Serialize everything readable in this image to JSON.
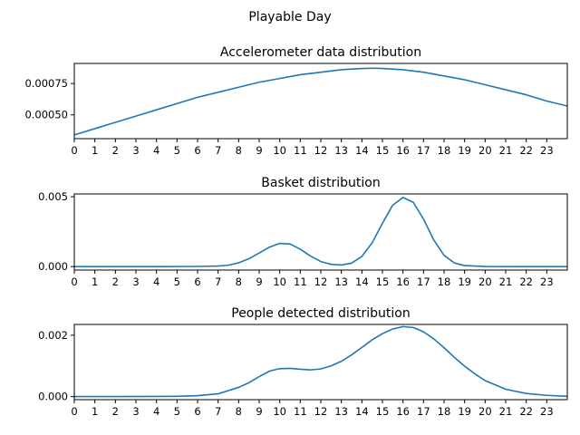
{
  "figure": {
    "suptitle": "Playable Day"
  },
  "chart_data": [
    {
      "type": "line",
      "title": "Accelerometer data distribution",
      "xlabel": "",
      "ylabel": "",
      "xlim": [
        0,
        24
      ],
      "ylim": [
        0.00031,
        0.00091
      ],
      "xticks": [
        0,
        1,
        2,
        3,
        4,
        5,
        6,
        7,
        8,
        9,
        10,
        11,
        12,
        13,
        14,
        15,
        16,
        17,
        18,
        19,
        20,
        21,
        22,
        23
      ],
      "yticks": [
        0.0005,
        0.00075
      ],
      "ytick_labels": [
        "0.00050",
        "0.00075"
      ],
      "series": [
        {
          "color": "#1f77b4",
          "x": [
            0,
            1,
            2,
            3,
            4,
            5,
            6,
            7,
            8,
            9,
            10,
            11,
            12,
            13,
            14,
            14.6,
            15,
            16,
            17,
            18,
            19,
            20,
            21,
            22,
            23,
            24
          ],
          "y": [
            0.00034,
            0.00039,
            0.00044,
            0.00049,
            0.00054,
            0.00059,
            0.00064,
            0.00068,
            0.00072,
            0.00076,
            0.00079,
            0.00082,
            0.00084,
            0.00086,
            0.00087,
            0.000872,
            0.00087,
            0.00086,
            0.00084,
            0.00081,
            0.00078,
            0.00074,
            0.0007,
            0.00066,
            0.00061,
            0.00057
          ]
        }
      ]
    },
    {
      "type": "line",
      "title": "Basket distribution",
      "xlabel": "",
      "ylabel": "",
      "xlim": [
        0,
        24
      ],
      "ylim": [
        -0.00025,
        0.0052
      ],
      "xticks": [
        0,
        1,
        2,
        3,
        4,
        5,
        6,
        7,
        8,
        9,
        10,
        11,
        12,
        13,
        14,
        15,
        16,
        17,
        18,
        19,
        20,
        21,
        22,
        23
      ],
      "yticks": [
        0.0,
        0.005
      ],
      "ytick_labels": [
        "0.000",
        "0.005"
      ],
      "series": [
        {
          "color": "#1f77b4",
          "x": [
            0,
            2,
            4,
            6,
            7,
            7.5,
            8,
            8.5,
            9,
            9.5,
            10,
            10.5,
            11,
            11.5,
            12,
            12.5,
            13,
            13.5,
            14,
            14.5,
            15,
            15.5,
            16,
            16.5,
            17,
            17.5,
            18,
            18.5,
            19,
            20,
            22,
            24
          ],
          "y": [
            0,
            0,
            0,
            1e-05,
            4e-05,
            0.0001,
            0.00027,
            0.00056,
            0.00097,
            0.00139,
            0.00166,
            0.00162,
            0.00124,
            0.00075,
            0.00036,
            0.00016,
            0.00011,
            0.00025,
            0.00073,
            0.0017,
            0.0031,
            0.0044,
            0.00495,
            0.0046,
            0.0034,
            0.0019,
            0.0008,
            0.00026,
            7e-05,
            5e-06,
            0,
            0
          ]
        }
      ]
    },
    {
      "type": "line",
      "title": "People detected distribution",
      "xlabel": "",
      "ylabel": "",
      "xlim": [
        0,
        24
      ],
      "ylim": [
        -0.0001,
        0.00235
      ],
      "xticks": [
        0,
        1,
        2,
        3,
        4,
        5,
        6,
        7,
        8,
        9,
        10,
        11,
        12,
        13,
        14,
        15,
        16,
        17,
        18,
        19,
        20,
        21,
        22,
        23
      ],
      "yticks": [
        0.0,
        0.002
      ],
      "ytick_labels": [
        "0.000",
        "0.002"
      ],
      "series": [
        {
          "color": "#1f77b4",
          "x": [
            0,
            2,
            4,
            5,
            6,
            7,
            8,
            8.5,
            9,
            9.5,
            10,
            10.5,
            11,
            11.5,
            12,
            12.5,
            13,
            13.5,
            14,
            14.5,
            15,
            15.5,
            16,
            16.5,
            17,
            17.5,
            18,
            18.5,
            19,
            19.5,
            20,
            21,
            22,
            23,
            24
          ],
          "y": [
            0,
            0,
            5e-06,
            1e-05,
            3e-05,
            9e-05,
            0.0003,
            0.00045,
            0.00065,
            0.00083,
            0.00091,
            0.00092,
            0.00089,
            0.00087,
            0.0009,
            0.001,
            0.00115,
            0.00136,
            0.0016,
            0.00185,
            0.00205,
            0.0022,
            0.00228,
            0.00225,
            0.00211,
            0.00188,
            0.00159,
            0.00128,
            0.00099,
            0.00074,
            0.00052,
            0.00024,
            0.0001,
            4e-05,
            1e-05
          ]
        }
      ]
    }
  ]
}
